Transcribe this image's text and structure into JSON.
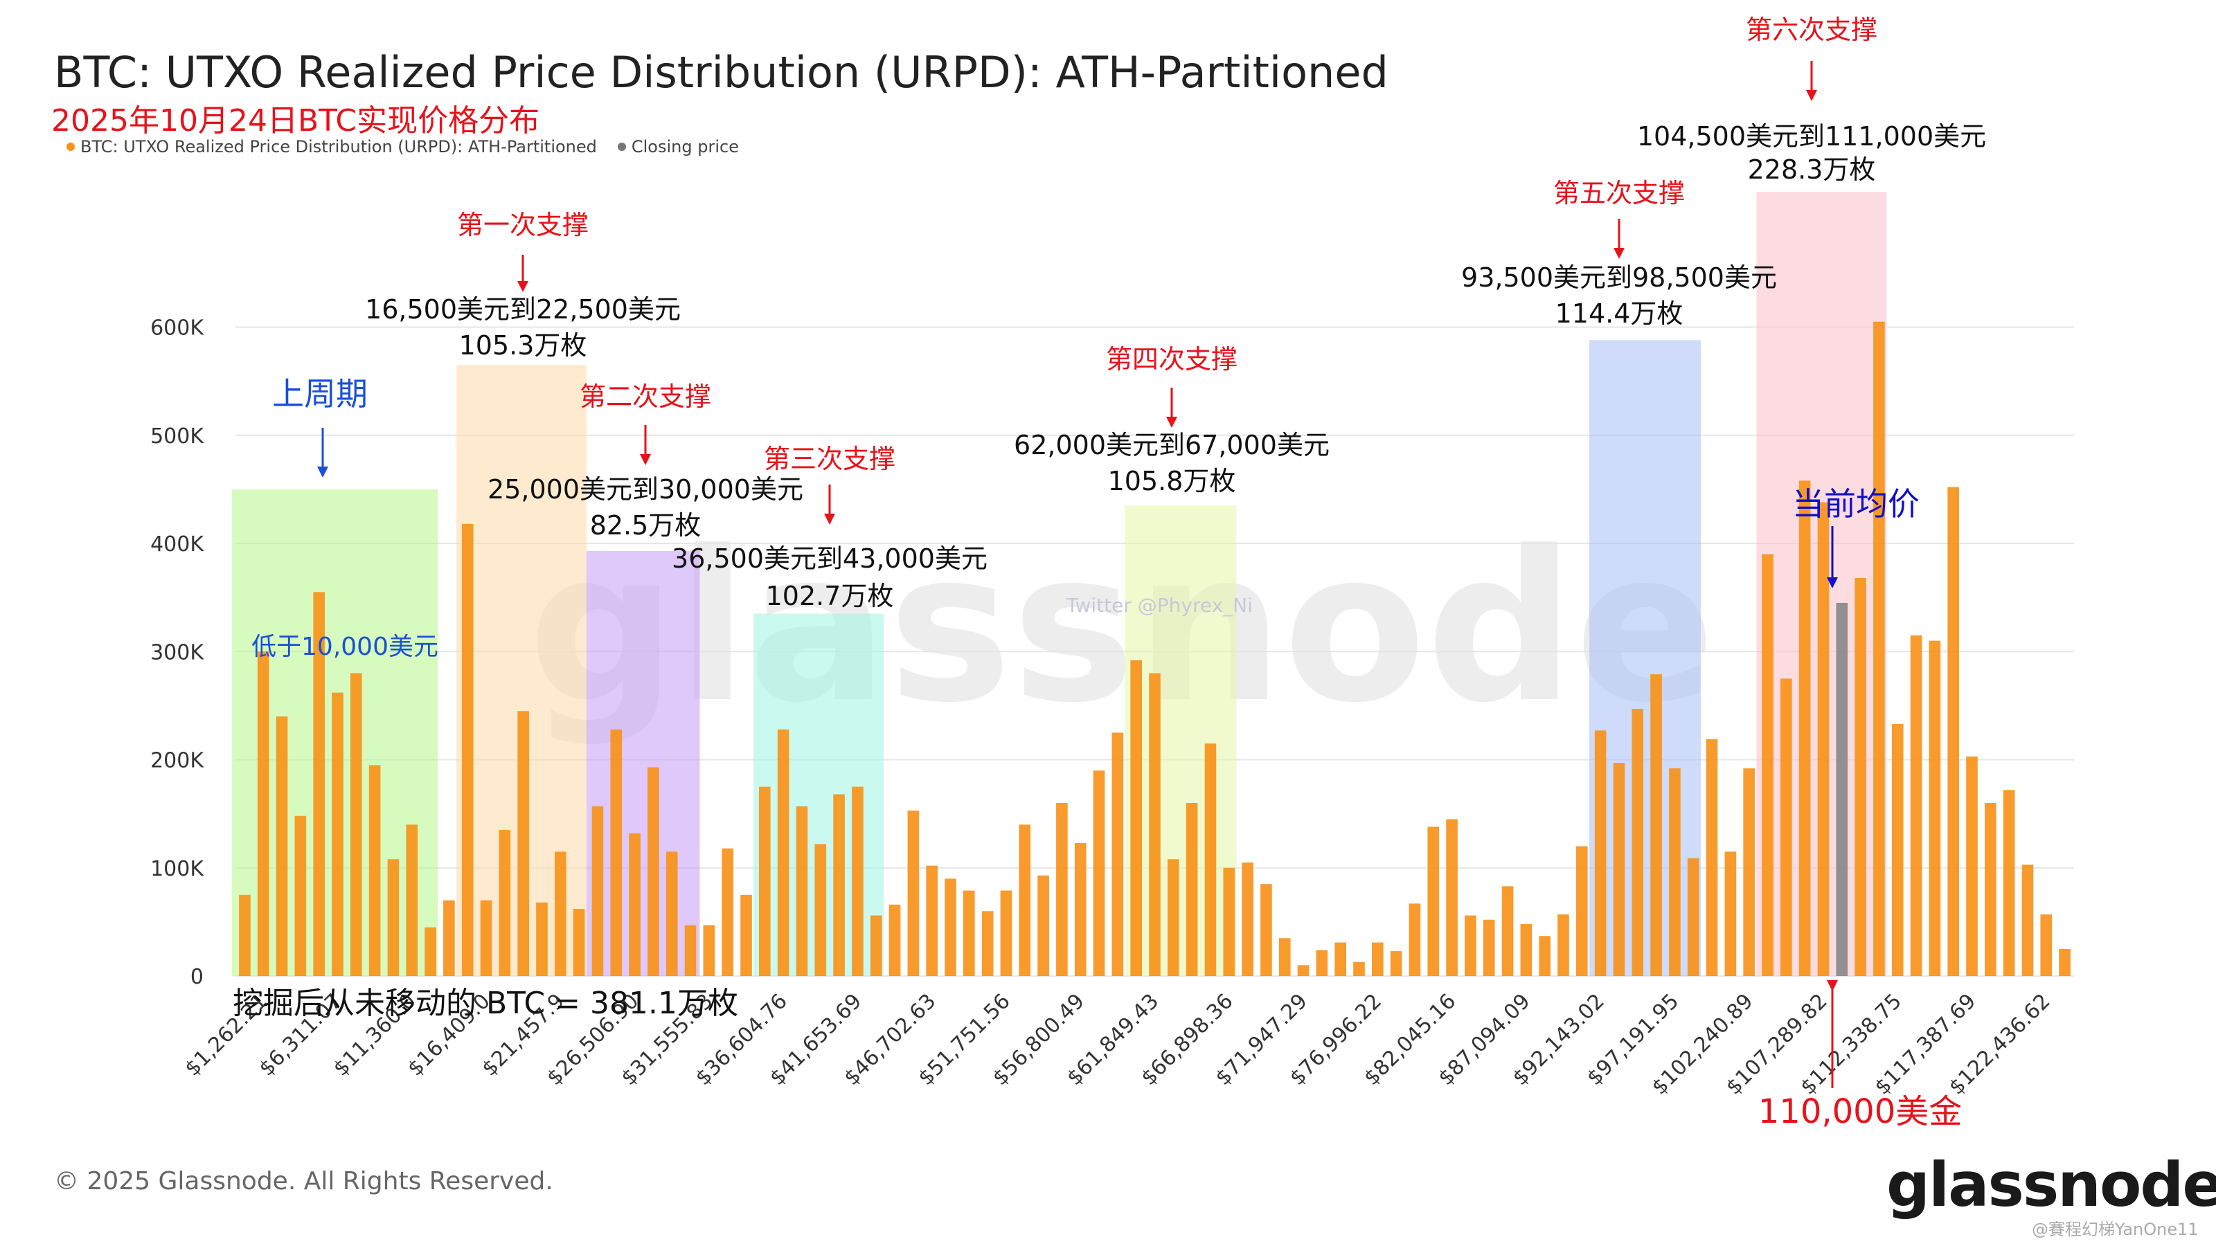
{
  "title": "BTC: UTXO Realized Price Distribution (URPD): ATH-Partitioned",
  "subtitle": "2025年10月24日BTC实现价格分布",
  "legend": [
    {
      "label": "BTC: UTXO Realized Price Distribution (URPD): ATH-Partitioned",
      "color": "#f7931a"
    },
    {
      "label": "Closing price",
      "color": "#777777"
    }
  ],
  "copyright": "© 2025 Glassnode. All Rights Reserved.",
  "brand": "glassnode",
  "watermark": "glassnode",
  "twitter_watermark": "Twitter @Phyrex_Ni",
  "user_watermark": "@賽程幻梯YanOne11",
  "colors": {
    "bar": "#f7931a",
    "closing": "#888888",
    "support_red": "#e8121a",
    "cycle_blue": "#1a4fd8"
  },
  "chart_data": {
    "type": "bar",
    "title": "BTC: UTXO Realized Price Distribution (URPD): ATH-Partitioned",
    "xlabel": "",
    "ylabel": "",
    "ylim": [
      0,
      640000
    ],
    "yticks": [
      0,
      100000,
      200000,
      300000,
      400000,
      500000,
      600000
    ],
    "ytick_labels": [
      "0",
      "100K",
      "200K",
      "300K",
      "400K",
      "500K",
      "600K"
    ],
    "xtick_labels": [
      "$1,262.21",
      "$6,311.07",
      "$11,360.0",
      "$16,409.0",
      "$21,457.9",
      "$26,506.90",
      "$31,555.83",
      "$36,604.76",
      "$41,653.69",
      "$46,702.63",
      "$51,751.56",
      "$56,800.49",
      "$61,849.43",
      "$66,898.36",
      "$71,947.29",
      "$76,996.22",
      "$82,045.16",
      "$87,094.09",
      "$92,143.02",
      "$97,191.95",
      "$102,240.89",
      "$107,289.82",
      "$112,338.75",
      "$117,387.69",
      "$122,436.62"
    ],
    "grid": true,
    "legend_position": "top-left",
    "values": [
      75000,
      300000,
      240000,
      148000,
      355000,
      262000,
      280000,
      195000,
      108000,
      140000,
      45000,
      70000,
      418000,
      70000,
      135000,
      245000,
      68000,
      115000,
      62000,
      157000,
      228000,
      132000,
      193000,
      115000,
      47000,
      47000,
      118000,
      75000,
      175000,
      228000,
      157000,
      122000,
      168000,
      175000,
      56000,
      66000,
      153000,
      102000,
      90000,
      79000,
      60000,
      79000,
      140000,
      93000,
      160000,
      123000,
      190000,
      225000,
      292000,
      280000,
      108000,
      160000,
      215000,
      100000,
      105000,
      85000,
      35000,
      10000,
      24000,
      31000,
      13000,
      31000,
      23000,
      67000,
      138000,
      145000,
      56000,
      52000,
      83000,
      48000,
      37000,
      57000,
      120000,
      227000,
      197000,
      247000,
      279000,
      192000,
      109000,
      219000,
      115000,
      192000,
      390000,
      275000,
      458000,
      438000,
      345000,
      368000,
      605000,
      233000,
      315000,
      310000,
      452000,
      203000,
      160000,
      172000,
      103000,
      57000,
      25000
    ],
    "closing_index": 86,
    "annotations": [
      {
        "label": "第一次支撑",
        "range": "16,500美元到22,500美元",
        "amount": "105.3万枚"
      },
      {
        "label": "第二次支撑",
        "range": "25,000美元到30,000美元",
        "amount": "82.5万枚"
      },
      {
        "label": "第三次支撑",
        "range": "36,500美元到43,000美元",
        "amount": "102.7万枚"
      },
      {
        "label": "第四次支撑",
        "range": "62,000美元到67,000美元",
        "amount": "105.8万枚"
      },
      {
        "label": "第五次支撑",
        "range": "93,500美元到98,500美元",
        "amount": "114.4万枚"
      },
      {
        "label": "第六次支撑",
        "range": "104,500美元到111,000美元",
        "amount": "228.3万枚"
      },
      {
        "label": "上周期",
        "note": "低于10,000美元"
      },
      {
        "label": "当前均价"
      },
      {
        "label": "110,000美金"
      }
    ],
    "bottom_note": "挖掘后从未移动的 BTC = 381.1万枚"
  }
}
